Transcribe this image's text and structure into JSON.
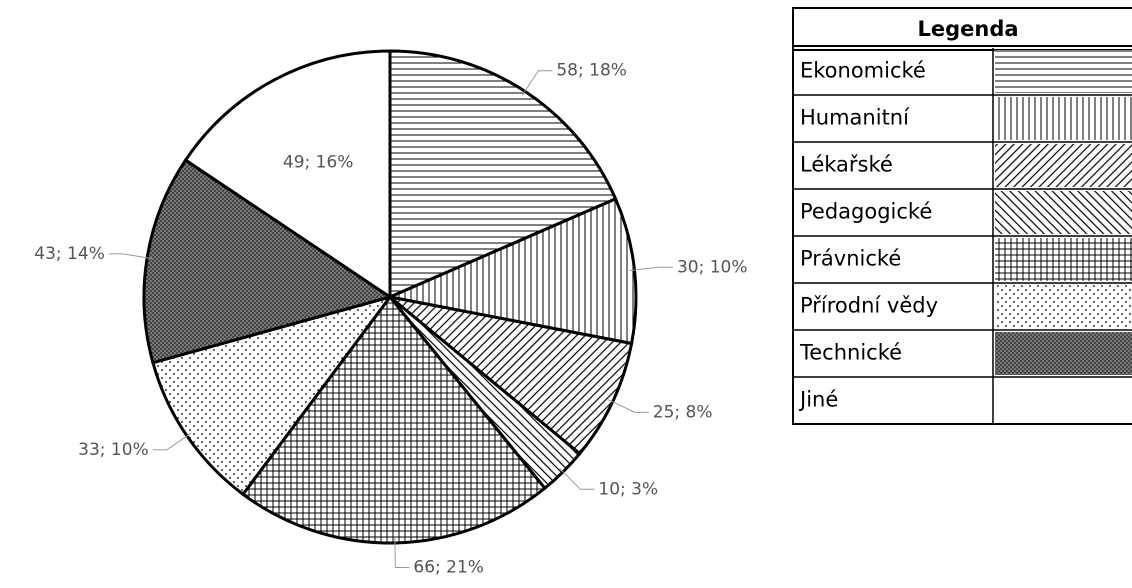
{
  "chart_data": {
    "type": "pie",
    "categories": [
      "Ekonomické",
      "Humanitní",
      "Lékařské",
      "Pedagogické",
      "Právnické",
      "Přírodní vědy",
      "Technické",
      "Jiné"
    ],
    "values": [
      58,
      30,
      25,
      10,
      66,
      33,
      43,
      49
    ],
    "value_labels": [
      "58; 18%",
      "30; 10%",
      "25; 8%",
      "10; 3%",
      "66; 21%",
      "33; 10%",
      "43; 14%",
      "49; 16%"
    ],
    "patterns": [
      "horizontal",
      "vertical",
      "diagonal-down",
      "diagonal-up",
      "grid",
      "dots",
      "dense-dots",
      "none"
    ],
    "color": "#000000",
    "legend": {
      "title": "Legenda"
    }
  }
}
